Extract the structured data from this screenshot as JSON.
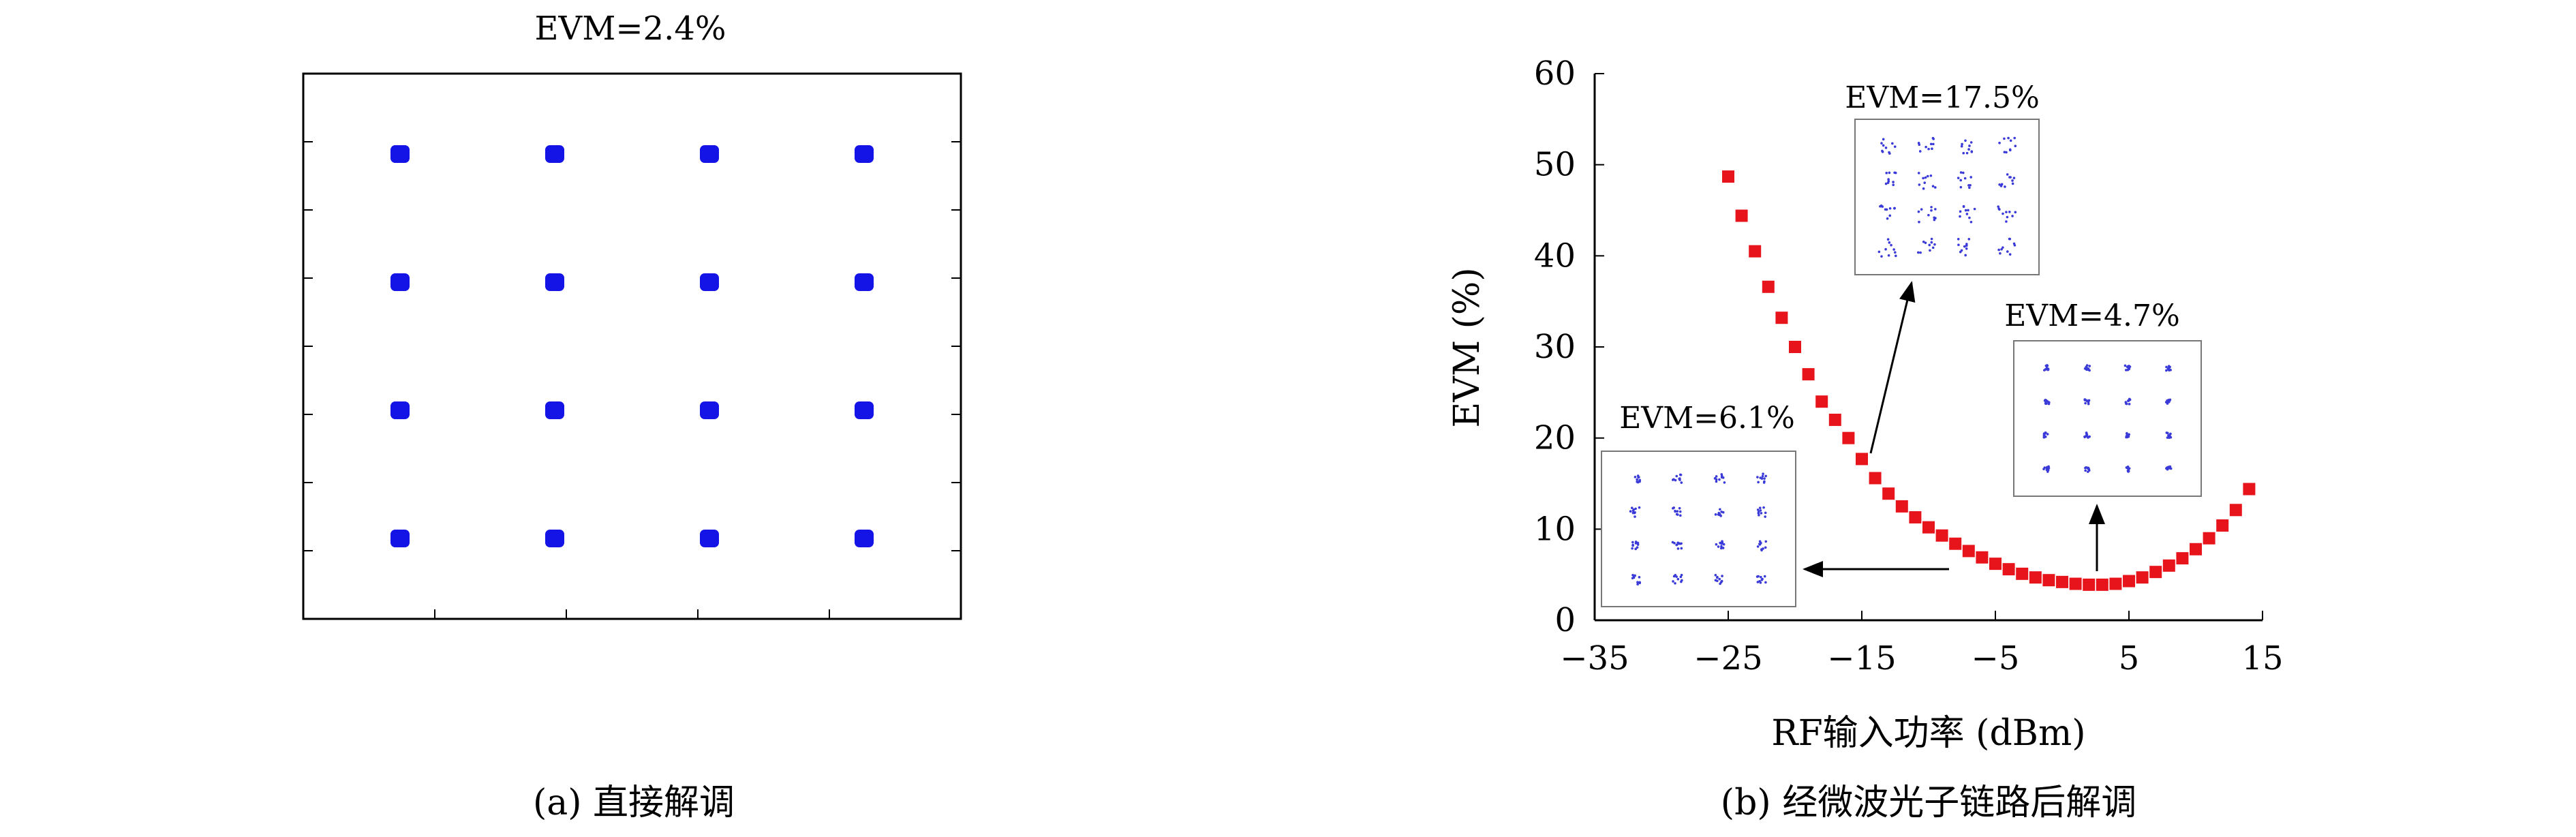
{
  "chart_data": [
    {
      "type": "scatter",
      "title": "EVM=2.4%",
      "caption": "(a) 直接解调",
      "xlabel": "",
      "ylabel": "",
      "xticks": 4,
      "yticks": 7,
      "constellation": [
        {
          "i": -3,
          "q": 3
        },
        {
          "i": -1,
          "q": 3
        },
        {
          "i": 1,
          "q": 3
        },
        {
          "i": 3,
          "q": 3
        },
        {
          "i": -3,
          "q": 1
        },
        {
          "i": -1,
          "q": 1
        },
        {
          "i": 1,
          "q": 1
        },
        {
          "i": 3,
          "q": 1
        },
        {
          "i": -3,
          "q": -1
        },
        {
          "i": -1,
          "q": -1
        },
        {
          "i": 1,
          "q": -1
        },
        {
          "i": 3,
          "q": -1
        },
        {
          "i": -3,
          "q": -3
        },
        {
          "i": -1,
          "q": -3
        },
        {
          "i": 1,
          "q": -3
        },
        {
          "i": 3,
          "q": -3
        }
      ],
      "point_color": "#1414e6",
      "grid": false
    },
    {
      "type": "scatter",
      "caption": "(b) 经微波光子链路后解调",
      "xlabel": "RF输入功率 (dBm)",
      "ylabel": "EVM (%)",
      "xlim": [
        -35,
        15
      ],
      "ylim": [
        0,
        60
      ],
      "xticks": [
        -35,
        -25,
        -15,
        -5,
        5,
        15
      ],
      "yticks": [
        0,
        10,
        20,
        30,
        40,
        50,
        60
      ],
      "grid": false,
      "series": [
        {
          "color": "#e8141c",
          "marker": "square",
          "x": [
            -25,
            -24,
            -23,
            -22,
            -21,
            -20,
            -19,
            -18,
            -17,
            -16,
            -15,
            -14,
            -13,
            -12,
            -11,
            -10,
            -9,
            -8,
            -7,
            -6,
            -5,
            -4,
            -3,
            -2,
            -1,
            0,
            1,
            2,
            3,
            4,
            5,
            6,
            7,
            8,
            9,
            10,
            11,
            12,
            13,
            14
          ],
          "y": [
            48.7,
            44.4,
            40.5,
            36.6,
            33.2,
            30.0,
            27.0,
            24.0,
            22.0,
            20.0,
            17.7,
            15.6,
            13.9,
            12.5,
            11.3,
            10.2,
            9.3,
            8.4,
            7.6,
            6.9,
            6.2,
            5.6,
            5.1,
            4.7,
            4.4,
            4.2,
            4.0,
            3.9,
            3.9,
            4.0,
            4.3,
            4.7,
            5.3,
            6.0,
            6.8,
            7.8,
            9.0,
            10.4,
            12.1,
            14.4
          ]
        }
      ],
      "insets": [
        {
          "label": "EVM=17.5%",
          "arrow_from_x": -14
        },
        {
          "label": "EVM=4.7%",
          "arrow_from_x": 3
        },
        {
          "label": "EVM=6.1%",
          "arrow_from_x": -3
        }
      ]
    }
  ]
}
